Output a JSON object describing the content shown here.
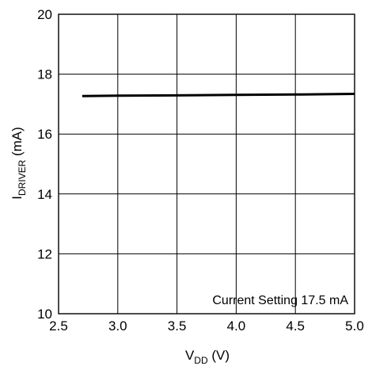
{
  "chart_data": {
    "type": "line",
    "title": "",
    "xlabel": {
      "main": "V",
      "sub": "DD",
      "unit": " (V)"
    },
    "ylabel": {
      "main": "I",
      "sub": "DRIVER",
      "unit": " (mA)"
    },
    "xlim": [
      2.5,
      5.0
    ],
    "ylim": [
      10,
      20
    ],
    "xticks": [
      2.5,
      3.0,
      3.5,
      4.0,
      4.5,
      5.0
    ],
    "xtick_labels": [
      "2.5",
      "3.0",
      "3.5",
      "4.0",
      "4.5",
      "5.0"
    ],
    "yticks": [
      10,
      12,
      14,
      16,
      18,
      20
    ],
    "ytick_labels": [
      "10",
      "12",
      "14",
      "16",
      "18",
      "20"
    ],
    "grid": true,
    "annotation": "Current Setting 17.5 mA",
    "series": [
      {
        "x": [
          2.7,
          3.0,
          3.5,
          4.0,
          4.5,
          5.0
        ],
        "y": [
          17.27,
          17.28,
          17.29,
          17.31,
          17.32,
          17.34
        ]
      }
    ],
    "line_color": "#000000",
    "grid_color": "#000000"
  }
}
